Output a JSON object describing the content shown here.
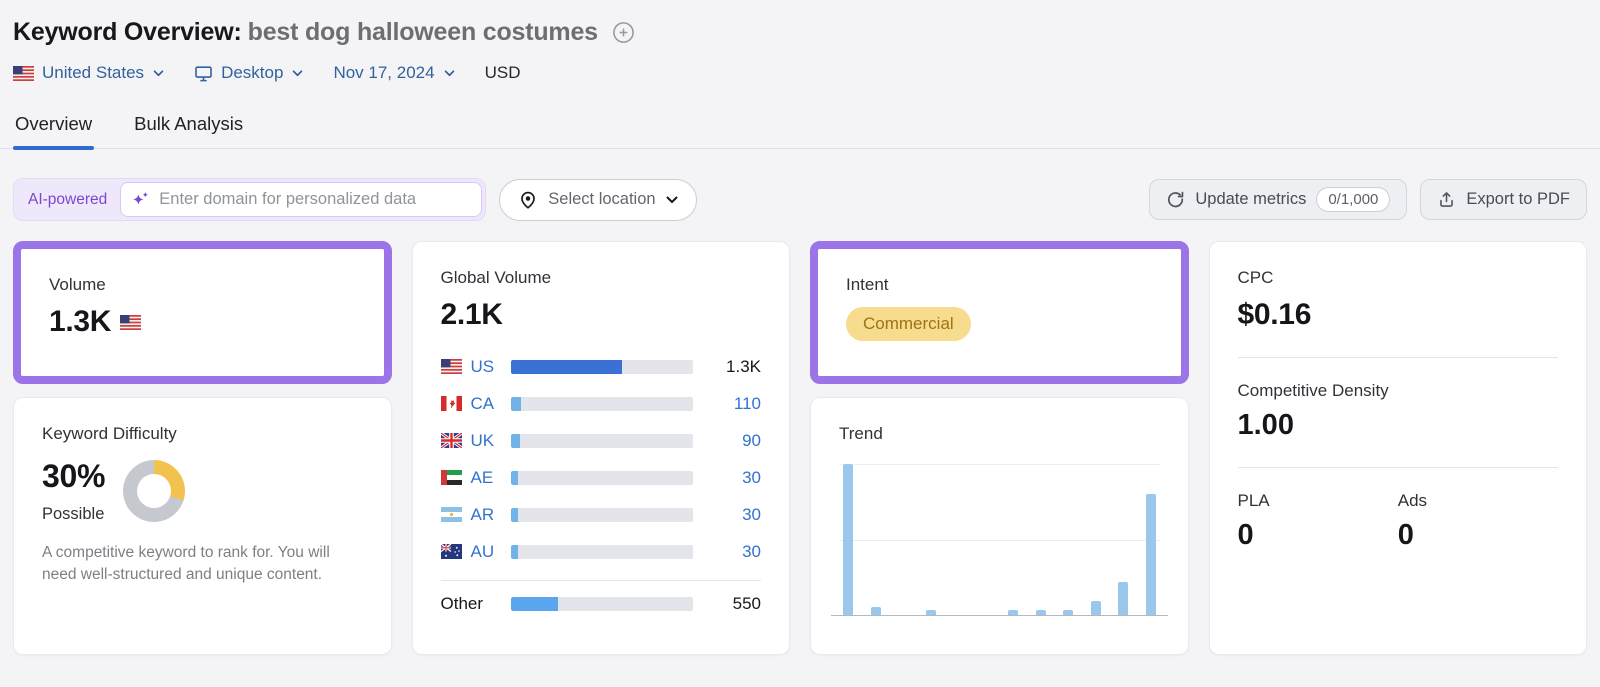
{
  "header": {
    "title": "Keyword Overview:",
    "keyword": "best dog halloween costumes"
  },
  "filters": {
    "country": "United States",
    "device": "Desktop",
    "date": "Nov 17, 2024",
    "currency": "USD"
  },
  "tabs": {
    "overview": "Overview",
    "bulk_analysis": "Bulk Analysis"
  },
  "toolbar": {
    "ai_badge": "AI-powered",
    "domain_placeholder": "Enter domain for personalized data",
    "location_label": "Select location",
    "update_metrics_label": "Update metrics",
    "update_metrics_count": "0/1,000",
    "export_label": "Export to PDF"
  },
  "cards": {
    "volume": {
      "label": "Volume",
      "value": "1.3K",
      "flag": "US"
    },
    "global_volume": {
      "label": "Global Volume",
      "value": "2.1K",
      "countries": [
        {
          "code": "US",
          "value": "1.3K",
          "pct": 61,
          "emphasis": true
        },
        {
          "code": "CA",
          "value": "110",
          "pct": 6,
          "emphasis": false
        },
        {
          "code": "UK",
          "value": "90",
          "pct": 5,
          "emphasis": false
        },
        {
          "code": "AE",
          "value": "30",
          "pct": 4,
          "emphasis": false
        },
        {
          "code": "AR",
          "value": "30",
          "pct": 4,
          "emphasis": false
        },
        {
          "code": "AU",
          "value": "30",
          "pct": 4,
          "emphasis": false
        }
      ],
      "other": {
        "label": "Other",
        "value": "550",
        "pct": 26
      }
    },
    "difficulty": {
      "label": "Keyword Difficulty",
      "value": "30%",
      "pct": 30,
      "level": "Possible",
      "description": "A competitive keyword to rank for. You will need well-structured and unique content."
    },
    "intent": {
      "label": "Intent",
      "badge": "Commercial"
    },
    "trend": {
      "label": "Trend"
    },
    "cpc": {
      "label": "CPC",
      "value": "$0.16"
    },
    "competitive_density": {
      "label": "Competitive Density",
      "value": "1.00"
    },
    "pla": {
      "label": "PLA",
      "value": "0"
    },
    "ads": {
      "label": "Ads",
      "value": "0"
    }
  },
  "chart_data": {
    "type": "bar",
    "title": "Trend",
    "xlabel": "",
    "ylabel": "",
    "ylim": [
      0,
      100
    ],
    "gridlines_pct": [
      50,
      100
    ],
    "values_pct_of_max": [
      100,
      5,
      0,
      3,
      0,
      0,
      3,
      3,
      3,
      9,
      22,
      80
    ]
  },
  "colors": {
    "purple_highlight": "#9b75e8",
    "tab_active": "#2e6bd0",
    "link_blue": "#33619c",
    "bar_us": "#3b70d4",
    "bar_light": "#6fb3e8",
    "bar_other": "#5ba7ef",
    "bar_track": "#e3e5ea",
    "trend_bar": "#9cc7ec",
    "kd_yellow": "#f2c24f",
    "kd_gray": "#c5c8ce",
    "intent_bg": "#f7dc8e",
    "intent_text": "#9c7317",
    "ai_purple": "#7a49cf",
    "ai_bg": "#efe8fa"
  }
}
